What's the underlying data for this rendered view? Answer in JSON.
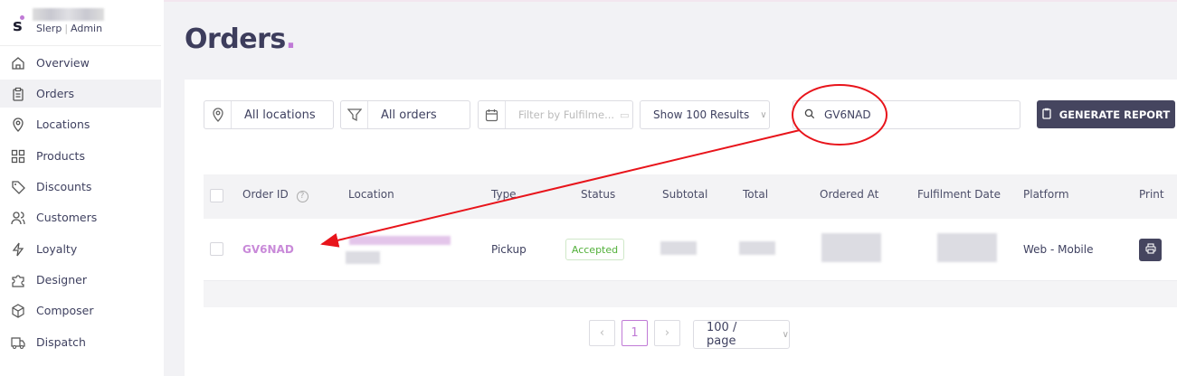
{
  "brand": {
    "name": "Slerp",
    "role": "Admin",
    "logo_letter": "s"
  },
  "sidebar": {
    "items": [
      {
        "label": "Overview",
        "icon": "home-icon"
      },
      {
        "label": "Orders",
        "icon": "clipboard-icon",
        "active": true
      },
      {
        "label": "Locations",
        "icon": "map-pin-icon"
      },
      {
        "label": "Products",
        "icon": "grid-icon"
      },
      {
        "label": "Discounts",
        "icon": "tag-icon"
      },
      {
        "label": "Customers",
        "icon": "users-icon"
      },
      {
        "label": "Loyalty",
        "icon": "lightning-icon"
      },
      {
        "label": "Designer",
        "icon": "puzzle-icon"
      },
      {
        "label": "Composer",
        "icon": "box-icon"
      },
      {
        "label": "Dispatch",
        "icon": "truck-icon"
      }
    ]
  },
  "page": {
    "title": "Orders",
    "title_dot": "."
  },
  "filters": {
    "location": "All locations",
    "orders": "All orders",
    "fulfilment_placeholder": "Filter by Fulfilme...",
    "results": "Show 100 Results",
    "search_value": "GV6NAD",
    "generate_report": "GENERATE REPORT"
  },
  "table": {
    "headers": [
      "Order ID",
      "Location",
      "Type",
      "Status",
      "Subtotal",
      "Total",
      "Ordered At",
      "Fulfilment Date",
      "Platform",
      "Print"
    ],
    "rows": [
      {
        "order_id": "GV6NAD",
        "type": "Pickup",
        "status": "Accepted",
        "platform": "Web - Mobile"
      }
    ]
  },
  "pagination": {
    "current": "1",
    "page_size": "100 / page"
  },
  "colors": {
    "accent": "#c07ad6",
    "primary": "#45455f",
    "success": "#52b03a",
    "annotation": "#e8141b"
  }
}
